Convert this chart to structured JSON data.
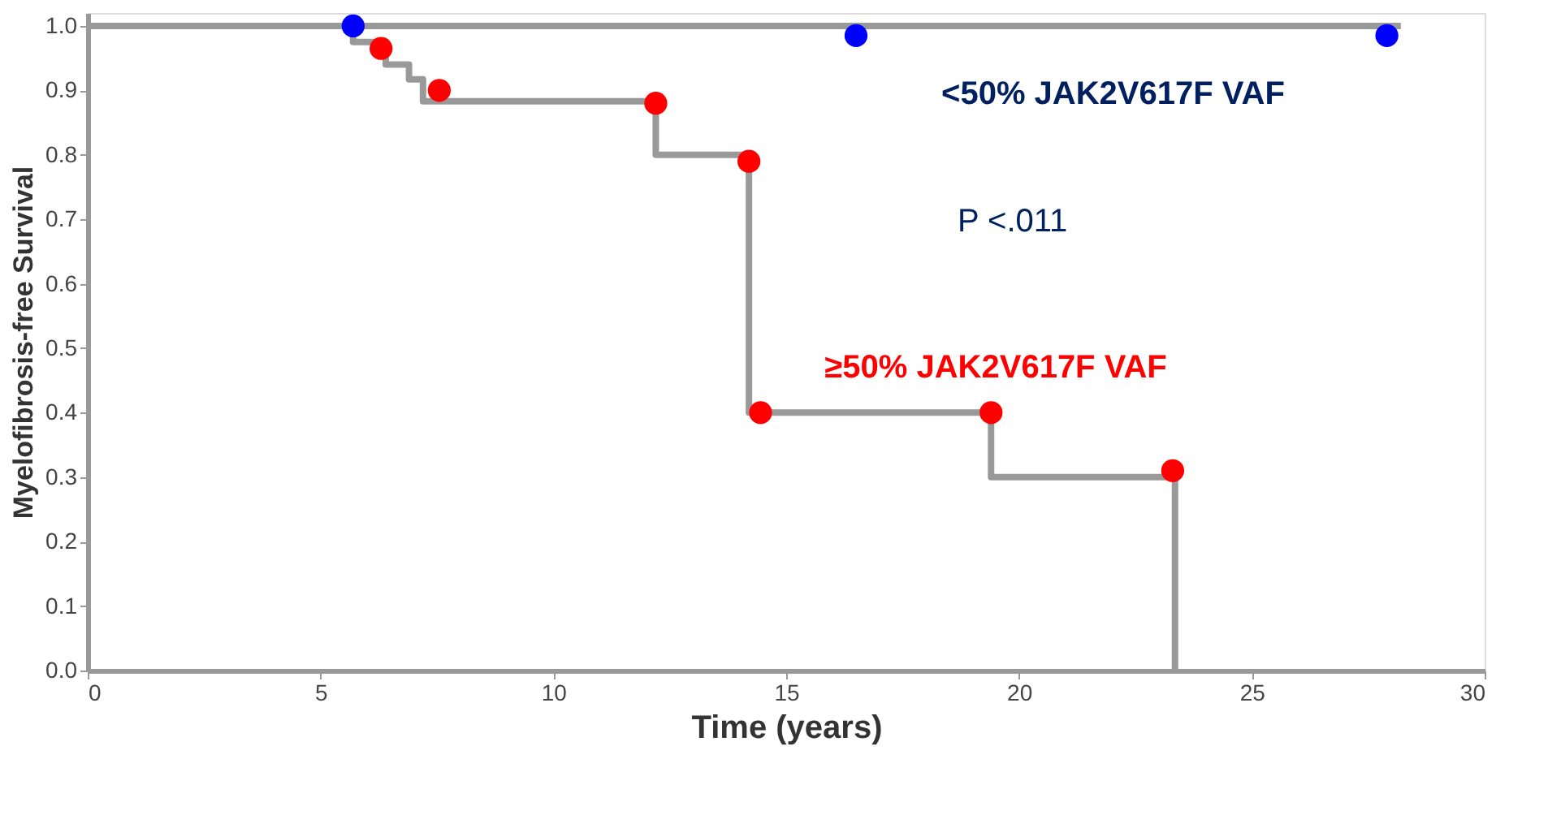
{
  "chart_data": {
    "type": "step",
    "xlabel": "Time (years)",
    "ylabel": "Myelofibrosis-free Survival",
    "xlim": [
      0,
      30
    ],
    "xticks": [
      0,
      5,
      10,
      15,
      20,
      25,
      30
    ],
    "ylim": [
      0,
      1.02
    ],
    "yticks": [
      {
        "value": 0,
        "label": "0.0"
      },
      {
        "value": 0.1,
        "label": "0.1"
      },
      {
        "value": 0.2,
        "label": "0.2"
      },
      {
        "value": 0.3,
        "label": "0.3"
      },
      {
        "value": 0.4,
        "label": "0.4"
      },
      {
        "value": 0.5,
        "label": "0.5"
      },
      {
        "value": 0.6,
        "label": "0.6"
      },
      {
        "value": 0.7,
        "label": "0.7"
      },
      {
        "value": 0.8,
        "label": "0.8"
      },
      {
        "value": 0.9,
        "label": "0.9"
      },
      {
        "value": 1.0,
        "label": "1.0"
      }
    ],
    "grid": false,
    "series": [
      {
        "color": "#999999",
        "x": [
          0,
          28.2
        ],
        "values": [
          1.0,
          1.0
        ]
      },
      {
        "color": "#999999",
        "x": [
          0,
          5.7,
          6.4,
          6.9,
          7.2,
          12.2,
          14.2,
          19.4,
          23.35
        ],
        "values": [
          1.0,
          0.975,
          0.94,
          0.917,
          0.883,
          0.8,
          0.4,
          0.3,
          0.0
        ]
      },
      {
        "type": "scatter",
        "color": "#0000ff",
        "marker": "circle",
        "x": [
          5.7,
          16.5,
          27.9
        ],
        "values": [
          1.0,
          0.985,
          0.985
        ]
      },
      {
        "type": "scatter",
        "color": "#ff0000",
        "marker": "circle",
        "x": [
          6.3,
          7.55,
          12.2,
          14.2,
          14.45,
          19.4,
          23.3
        ],
        "values": [
          0.965,
          0.9,
          0.88,
          0.79,
          0.4,
          0.4,
          0.31
        ]
      }
    ],
    "annotations": [
      "<50% JAK2V617F VAF",
      "≥50% JAK2V617F VAF",
      "P <.011"
    ]
  }
}
